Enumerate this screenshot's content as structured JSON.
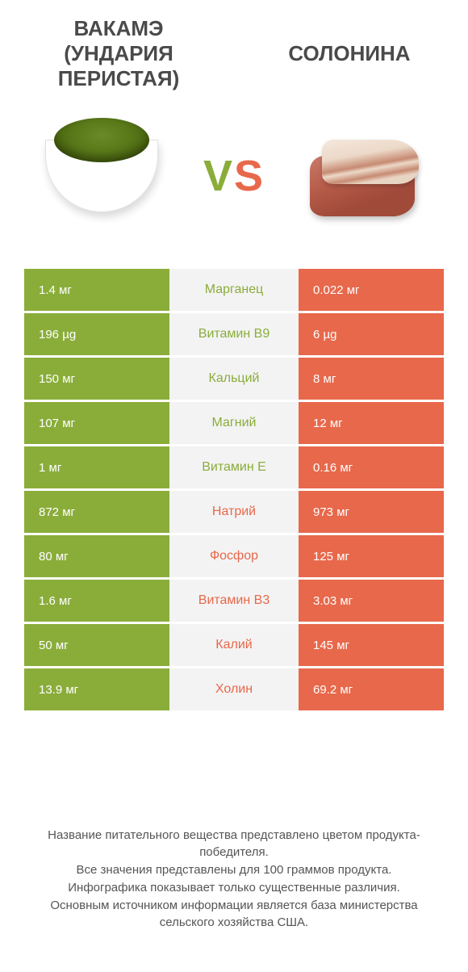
{
  "colors": {
    "left": "#8aad3a",
    "right": "#e8684b",
    "nutrient_bg": "#f3f3f3",
    "title": "#4a4a4a"
  },
  "titles": {
    "left": "ВАКАМЭ (УНДАРИЯ ПЕРИСТАЯ)",
    "right": "СОЛОНИНА"
  },
  "vs": {
    "v": "V",
    "s": "S"
  },
  "rows": [
    {
      "left": "1.4 мг",
      "nutrient": "Марганец",
      "right": "0.022 мг",
      "winner": "left"
    },
    {
      "left": "196 µg",
      "nutrient": "Витамин B9",
      "right": "6 µg",
      "winner": "left"
    },
    {
      "left": "150 мг",
      "nutrient": "Кальций",
      "right": "8 мг",
      "winner": "left"
    },
    {
      "left": "107 мг",
      "nutrient": "Магний",
      "right": "12 мг",
      "winner": "left"
    },
    {
      "left": "1 мг",
      "nutrient": "Витамин E",
      "right": "0.16 мг",
      "winner": "left"
    },
    {
      "left": "872 мг",
      "nutrient": "Натрий",
      "right": "973 мг",
      "winner": "right"
    },
    {
      "left": "80 мг",
      "nutrient": "Фосфор",
      "right": "125 мг",
      "winner": "right"
    },
    {
      "left": "1.6 мг",
      "nutrient": "Витамин B3",
      "right": "3.03 мг",
      "winner": "right"
    },
    {
      "left": "50 мг",
      "nutrient": "Калий",
      "right": "145 мг",
      "winner": "right"
    },
    {
      "left": "13.9 мг",
      "nutrient": "Холин",
      "right": "69.2 мг",
      "winner": "right"
    }
  ],
  "footer": {
    "l1": "Название питательного вещества представлено цветом продукта-победителя.",
    "l2": "Все значения представлены для 100 граммов продукта.",
    "l3": "Инфографика показывает только существенные различия.",
    "l4": "Основным источником информации является база министерства сельского хозяйства США."
  }
}
